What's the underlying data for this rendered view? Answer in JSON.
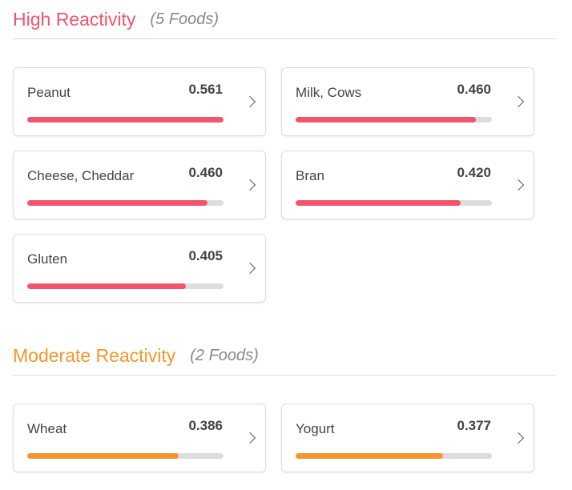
{
  "sections": [
    {
      "title": "High Reactivity",
      "count": "(5 Foods)",
      "color": "#f2546e",
      "foods": [
        {
          "name": "Peanut",
          "score": "0.561",
          "fraction": 1.0
        },
        {
          "name": "Milk, Cows",
          "score": "0.460",
          "fraction": 0.92
        },
        {
          "name": "Cheese, Cheddar",
          "score": "0.460",
          "fraction": 0.92
        },
        {
          "name": "Bran",
          "score": "0.420",
          "fraction": 0.84
        },
        {
          "name": "Gluten",
          "score": "0.405",
          "fraction": 0.81
        }
      ]
    },
    {
      "title": "Moderate Reactivity",
      "count": "(2 Foods)",
      "color": "#f5962c",
      "foods": [
        {
          "name": "Wheat",
          "score": "0.386",
          "fraction": 0.77
        },
        {
          "name": "Yogurt",
          "score": "0.377",
          "fraction": 0.75
        }
      ]
    }
  ]
}
